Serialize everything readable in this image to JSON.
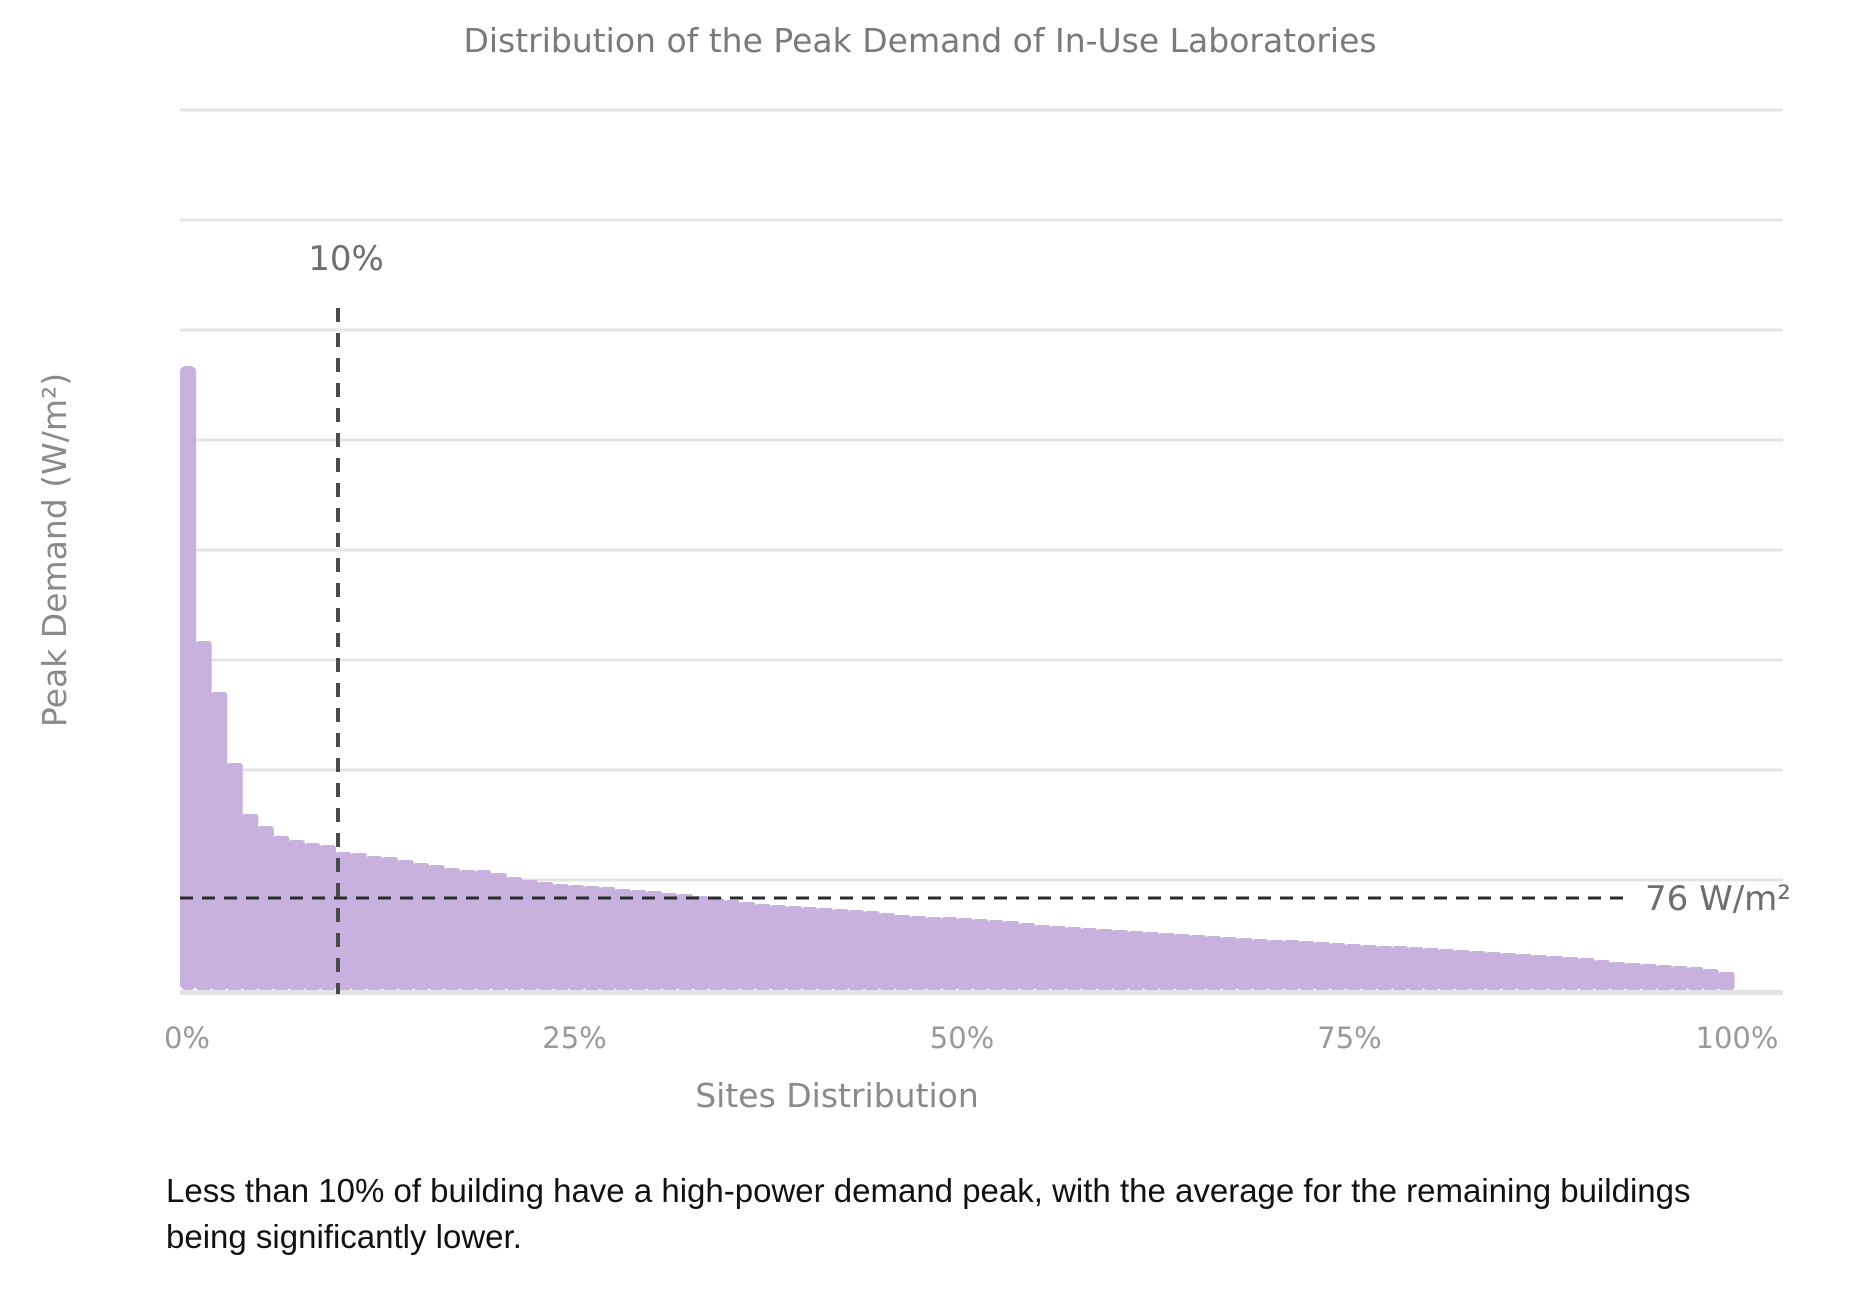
{
  "chart_data": {
    "type": "bar",
    "title": "Distribution of the Peak Demand of In-Use Laboratories",
    "xlabel": "Sites Distribution",
    "ylabel": "Peak Demand (W/m²)",
    "x_ticks": [
      "0%",
      "25%",
      "50%",
      "75%",
      "100%"
    ],
    "xlim": [
      0,
      100
    ],
    "grid": true,
    "bar_color": "#c8b1de",
    "vline": {
      "x": 10,
      "label": "10%"
    },
    "hline": {
      "y": 76,
      "label": "76 W/m²"
    },
    "x": [
      0,
      1,
      2,
      3,
      4,
      5,
      6,
      7,
      8,
      9,
      10,
      11,
      12,
      13,
      14,
      15,
      16,
      17,
      18,
      19,
      20,
      21,
      22,
      23,
      24,
      25,
      26,
      27,
      28,
      29,
      30,
      31,
      32,
      33,
      34,
      35,
      36,
      37,
      38,
      39,
      40,
      41,
      42,
      43,
      44,
      45,
      46,
      47,
      48,
      49,
      50,
      51,
      52,
      53,
      54,
      55,
      56,
      57,
      58,
      59,
      60,
      61,
      62,
      63,
      64,
      65,
      66,
      67,
      68,
      69,
      70,
      71,
      72,
      73,
      74,
      75,
      76,
      77,
      78,
      79,
      80,
      81,
      82,
      83,
      84,
      85,
      86,
      87,
      88,
      89,
      90,
      91,
      92,
      93,
      94,
      95,
      96,
      97,
      98,
      99
    ],
    "values": [
      624,
      349,
      298,
      227,
      176,
      164,
      154,
      150,
      147,
      145,
      138,
      137,
      134,
      133,
      130,
      127,
      125,
      122,
      120,
      120,
      117,
      113,
      110,
      108,
      106,
      105,
      104,
      103,
      101,
      100,
      99,
      97,
      96,
      94,
      92,
      90,
      88,
      86,
      85,
      84,
      83,
      82,
      81,
      80,
      79,
      77,
      75,
      74,
      73,
      73,
      72,
      71,
      70,
      69,
      67,
      65,
      64,
      63,
      62,
      61,
      60,
      59,
      58,
      57,
      56,
      55,
      54,
      53,
      52,
      51,
      50,
      50,
      49,
      48,
      47,
      46,
      45,
      44,
      44,
      43,
      42,
      41,
      40,
      39,
      38,
      37,
      36,
      35,
      34,
      33,
      32,
      30,
      28,
      27,
      26,
      25,
      24,
      23,
      21,
      18
    ]
  },
  "caption": "Less than 10% of building have a high-power demand peak, with the average for the remaining buildings being significantly lower."
}
